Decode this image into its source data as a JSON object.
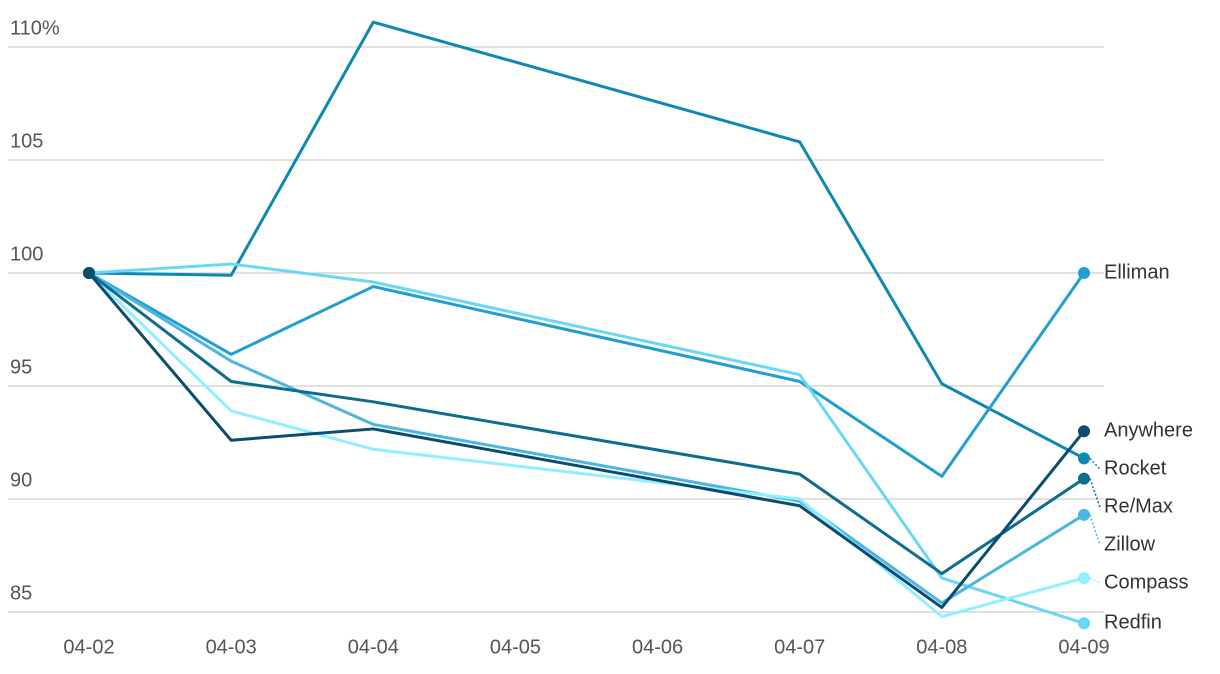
{
  "chart_data": {
    "type": "line",
    "x": [
      "04-02",
      "04-03",
      "04-04",
      "04-07",
      "04-08",
      "04-09"
    ],
    "xticks": [
      "04-02",
      "04-03",
      "04-04",
      "04-05",
      "04-06",
      "04-07",
      "04-08",
      "04-09"
    ],
    "ylim": [
      84,
      111
    ],
    "yticks": [
      85,
      90,
      95,
      100,
      105,
      {
        "value": 110,
        "label": "110%"
      }
    ],
    "grid": true,
    "series": [
      {
        "name": "Rocket",
        "color": "#0f88b3",
        "values": [
          100,
          99.9,
          111.1,
          105.8,
          95.1,
          91.8
        ]
      },
      {
        "name": "Elliman",
        "color": "#229fd0",
        "values": [
          100,
          96.4,
          99.4,
          95.2,
          91.0,
          100
        ]
      },
      {
        "name": "Redfin",
        "color": "#6ad7f5",
        "values": [
          100,
          100.4,
          99.6,
          95.5,
          86.5,
          84.5
        ]
      },
      {
        "name": "Zillow",
        "color": "#4cb5e0",
        "values": [
          100,
          96.1,
          93.3,
          89.9,
          85.4,
          89.3
        ]
      },
      {
        "name": "Compass",
        "color": "#90f0ff",
        "values": [
          100,
          93.9,
          92.2,
          90.0,
          84.8,
          86.5
        ]
      },
      {
        "name": "Re/Max",
        "color": "#0e6c8e",
        "values": [
          100,
          95.2,
          94.3,
          91.1,
          86.7,
          90.9
        ]
      },
      {
        "name": "Anywhere",
        "color": "#0b4d6e",
        "values": [
          100,
          92.6,
          93.1,
          89.7,
          85.2,
          93.0
        ]
      }
    ]
  }
}
